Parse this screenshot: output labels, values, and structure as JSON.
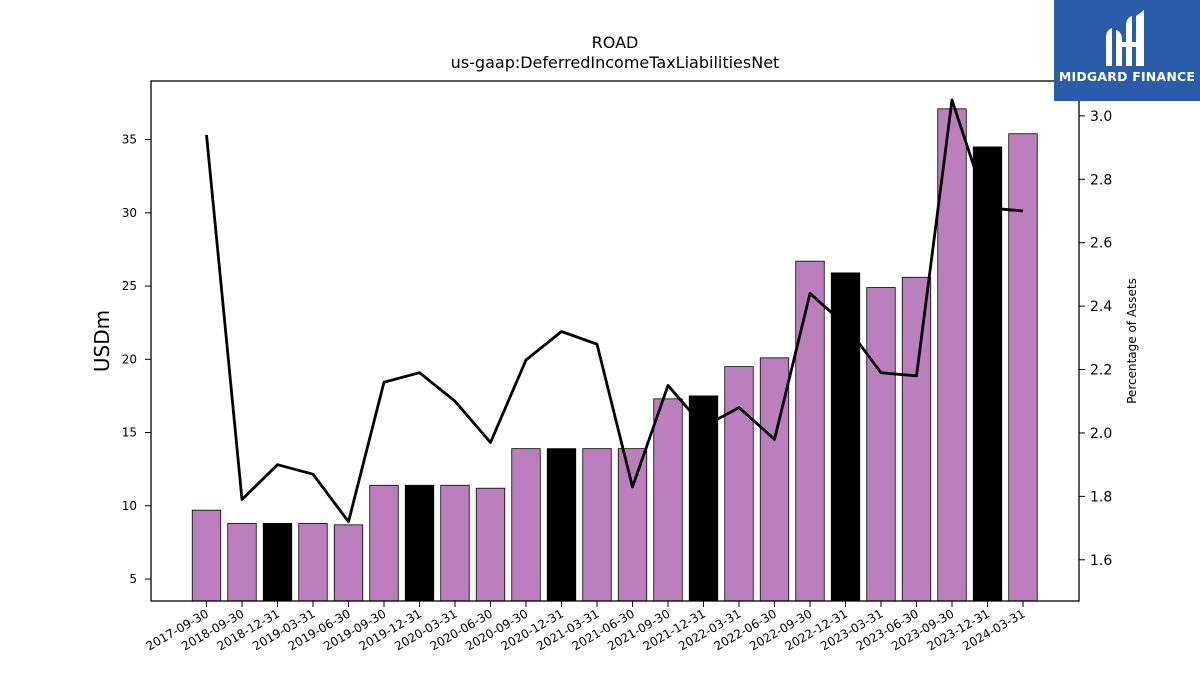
{
  "brand": {
    "name": "MIDGARD FINANCE",
    "logo": "mh-monogram-icon",
    "background": "#2a5caa"
  },
  "colors": {
    "bar_quarter": "#bc7fbe",
    "bar_year_end": "#000000",
    "line": "#000000"
  },
  "chart_data": {
    "type": "bar",
    "title": "ROAD",
    "subtitle": "us-gaap:DeferredIncomeTaxLiabilitiesNet",
    "ylabel": "USDm",
    "y2label": "Percentage of Assets",
    "ylim": [
      3.5,
      39
    ],
    "y2lim": [
      1.47,
      3.11
    ],
    "yticks": [
      5,
      10,
      15,
      20,
      25,
      30,
      35
    ],
    "y2ticks": [
      1.6,
      1.8,
      2.0,
      2.2,
      2.4,
      2.6,
      2.8,
      3.0
    ],
    "categories": [
      "2017-09-30",
      "2018-09-30",
      "2018-12-31",
      "2019-03-31",
      "2019-06-30",
      "2019-09-30",
      "2019-12-31",
      "2020-03-31",
      "2020-06-30",
      "2020-09-30",
      "2020-12-31",
      "2021-03-31",
      "2021-06-30",
      "2021-09-30",
      "2021-12-31",
      "2022-03-31",
      "2022-06-30",
      "2022-09-30",
      "2022-12-31",
      "2023-03-31",
      "2023-06-30",
      "2023-09-30",
      "2023-12-31",
      "2024-03-31"
    ],
    "series": [
      {
        "type": "bar",
        "values": [
          9.7,
          8.8,
          8.8,
          8.8,
          8.7,
          11.4,
          11.4,
          11.4,
          11.2,
          13.9,
          13.9,
          13.9,
          13.9,
          17.3,
          17.5,
          19.5,
          20.1,
          26.7,
          25.9,
          24.9,
          25.6,
          37.1,
          34.5,
          35.4
        ],
        "year_end": [
          false,
          false,
          true,
          false,
          false,
          false,
          true,
          false,
          false,
          false,
          true,
          false,
          false,
          false,
          true,
          false,
          false,
          false,
          true,
          false,
          false,
          false,
          true,
          false
        ]
      },
      {
        "type": "line",
        "axis": "right",
        "values": [
          2.94,
          1.79,
          1.9,
          1.87,
          1.72,
          2.16,
          2.19,
          2.1,
          1.97,
          2.23,
          2.32,
          2.28,
          1.83,
          2.15,
          2.02,
          2.08,
          1.98,
          2.44,
          2.34,
          2.19,
          2.18,
          3.05,
          2.71,
          2.7
        ]
      }
    ]
  }
}
